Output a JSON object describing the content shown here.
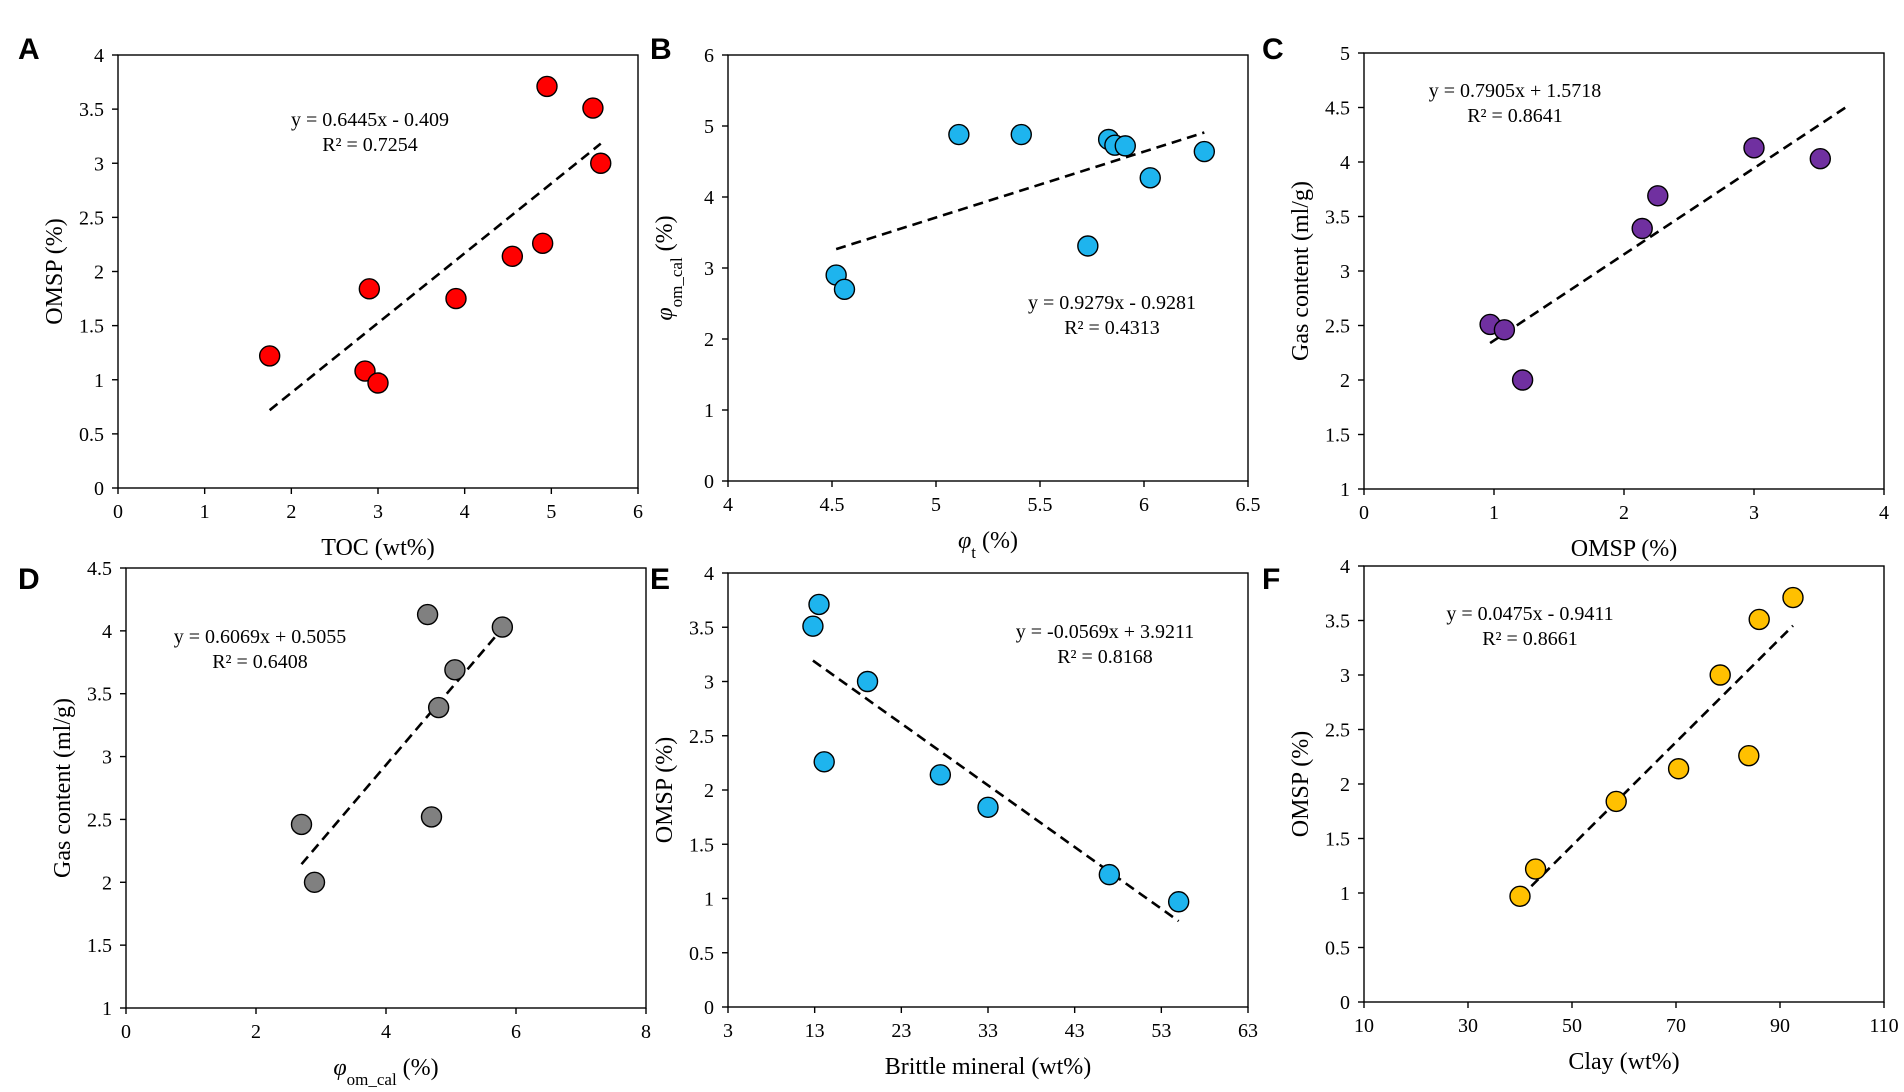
{
  "chart_data": [
    {
      "panel": "A",
      "type": "scatter",
      "xlabel": "TOC (wt%)",
      "ylabel": "OMSP (%)",
      "xlim": [
        0,
        6
      ],
      "ylim": [
        0,
        4
      ],
      "xticks": [
        "0",
        "1",
        "2",
        "3",
        "4",
        "5",
        "6"
      ],
      "yticks": [
        "0",
        "0.5",
        "1",
        "1.5",
        "2",
        "2.5",
        "3",
        "3.5",
        "4"
      ],
      "color": "#ff0000",
      "points": [
        [
          1.75,
          1.22
        ],
        [
          2.85,
          1.08
        ],
        [
          2.9,
          1.84
        ],
        [
          3.0,
          0.97
        ],
        [
          3.9,
          1.75
        ],
        [
          4.55,
          2.14
        ],
        [
          4.9,
          2.26
        ],
        [
          4.95,
          3.71
        ],
        [
          5.48,
          3.51
        ],
        [
          5.57,
          3.0
        ]
      ],
      "trend": {
        "slope": 0.6445,
        "intercept": -0.409,
        "x_range": [
          1.75,
          5.57
        ]
      },
      "equation": "y = 0.6445x - 0.409",
      "r2": "R² = 0.7254",
      "eq_pos": "top-center"
    },
    {
      "panel": "B",
      "type": "scatter",
      "xlabel_main": "φ",
      "xlabel_sub": "t",
      "xlabel_tail": " (%)",
      "ylabel_main": "φ",
      "ylabel_sub": "om_cal",
      "ylabel_tail": " (%)",
      "xlim": [
        4,
        6.5
      ],
      "ylim": [
        0,
        6
      ],
      "xticks": [
        "4",
        "4.5",
        "5",
        "5.5",
        "6",
        "6.5"
      ],
      "yticks": [
        "0",
        "1",
        "2",
        "3",
        "4",
        "5",
        "6"
      ],
      "color": "#1eb4ee",
      "points": [
        [
          4.52,
          2.9
        ],
        [
          4.56,
          2.7
        ],
        [
          5.11,
          4.88
        ],
        [
          5.41,
          4.88
        ],
        [
          5.73,
          3.31
        ],
        [
          5.83,
          4.81
        ],
        [
          5.86,
          4.73
        ],
        [
          5.91,
          4.72
        ],
        [
          6.03,
          4.27
        ],
        [
          6.29,
          4.64
        ]
      ],
      "trend": {
        "slope": 0.9279,
        "intercept": -0.9281,
        "x_range": [
          4.52,
          6.29
        ]
      },
      "equation": "y = 0.9279x - 0.9281",
      "r2": "R² = 0.4313",
      "eq_pos": "bottom-right"
    },
    {
      "panel": "C",
      "type": "scatter",
      "xlabel": "OMSP (%)",
      "ylabel": "Gas content (ml/g)",
      "xlim": [
        0,
        4
      ],
      "ylim": [
        1,
        5
      ],
      "xticks": [
        "0",
        "1",
        "2",
        "3",
        "4"
      ],
      "yticks": [
        "1",
        "1.5",
        "2",
        "2.5",
        "3",
        "3.5",
        "4",
        "4.5",
        "5"
      ],
      "color": "#7030a0",
      "points": [
        [
          0.97,
          2.51
        ],
        [
          1.08,
          2.46
        ],
        [
          1.22,
          2.0
        ],
        [
          2.14,
          3.39
        ],
        [
          2.26,
          3.69
        ],
        [
          3.0,
          4.13
        ],
        [
          3.51,
          4.03
        ]
      ],
      "trend": {
        "slope": 0.7905,
        "intercept": 1.5718,
        "x_range": [
          0.97,
          3.71
        ]
      },
      "equation": "y = 0.7905x + 1.5718",
      "r2": "R² = 0.8641",
      "eq_pos": "top-left"
    },
    {
      "panel": "D",
      "type": "scatter",
      "xlabel_main": "φ",
      "xlabel_sub": "om_cal",
      "xlabel_tail": " (%)",
      "ylabel": "Gas content (ml/g)",
      "xlim": [
        0,
        8
      ],
      "ylim": [
        1,
        4.5
      ],
      "xticks": [
        "0",
        "2",
        "4",
        "6",
        "8"
      ],
      "yticks": [
        "1",
        "1.5",
        "2",
        "2.5",
        "3",
        "3.5",
        "4",
        "4.5"
      ],
      "color": "#808080",
      "points": [
        [
          2.7,
          2.46
        ],
        [
          2.9,
          2.0
        ],
        [
          4.64,
          4.13
        ],
        [
          4.7,
          2.52
        ],
        [
          4.81,
          3.39
        ],
        [
          5.06,
          3.69
        ],
        [
          5.79,
          4.03
        ]
      ],
      "trend": {
        "slope": 0.6069,
        "intercept": 0.5055,
        "x_range": [
          2.7,
          5.79
        ]
      },
      "equation": "y = 0.6069x + 0.5055",
      "r2": "R² = 0.6408",
      "eq_pos": "top-left"
    },
    {
      "panel": "E",
      "type": "scatter",
      "xlabel": "Brittle mineral  (wt%)",
      "ylabel": "OMSP (%)",
      "xlim": [
        3,
        63
      ],
      "ylim": [
        0,
        4
      ],
      "xticks": [
        "3",
        "13",
        "23",
        "33",
        "43",
        "53",
        "63"
      ],
      "yticks": [
        "0",
        "0.5",
        "1",
        "1.5",
        "2",
        "2.5",
        "3",
        "3.5",
        "4"
      ],
      "color": "#1eb4ee",
      "points": [
        [
          12.8,
          3.51
        ],
        [
          13.5,
          3.71
        ],
        [
          14.1,
          2.26
        ],
        [
          19.1,
          3.0
        ],
        [
          27.5,
          2.14
        ],
        [
          33.0,
          1.84
        ],
        [
          47.0,
          1.22
        ],
        [
          55.0,
          0.97
        ]
      ],
      "trend": {
        "slope": -0.0569,
        "intercept": 3.9211,
        "x_range": [
          12.8,
          55.0
        ]
      },
      "equation": "y = -0.0569x + 3.9211",
      "r2": "R² = 0.8168",
      "eq_pos": "top-right"
    },
    {
      "panel": "F",
      "type": "scatter",
      "xlabel": "Clay (wt%)",
      "ylabel": "OMSP (%)",
      "xlim": [
        10,
        110
      ],
      "ylim": [
        0,
        4
      ],
      "xticks": [
        "10",
        "30",
        "50",
        "70",
        "90",
        "110"
      ],
      "yticks": [
        "0",
        "0.5",
        "1",
        "1.5",
        "2",
        "2.5",
        "3",
        "3.5",
        "4"
      ],
      "color": "#ffc000",
      "points": [
        [
          40.0,
          0.97
        ],
        [
          43.0,
          1.22
        ],
        [
          58.5,
          1.84
        ],
        [
          70.5,
          2.14
        ],
        [
          78.5,
          3.0
        ],
        [
          84.0,
          2.26
        ],
        [
          86.0,
          3.51
        ],
        [
          92.5,
          3.71
        ]
      ],
      "trend": {
        "slope": 0.0475,
        "intercept": -0.9411,
        "x_range": [
          40.0,
          92.5
        ]
      },
      "equation": "y = 0.0475x - 0.9411",
      "r2": "R² = 0.8661",
      "eq_pos": "top-left"
    }
  ]
}
